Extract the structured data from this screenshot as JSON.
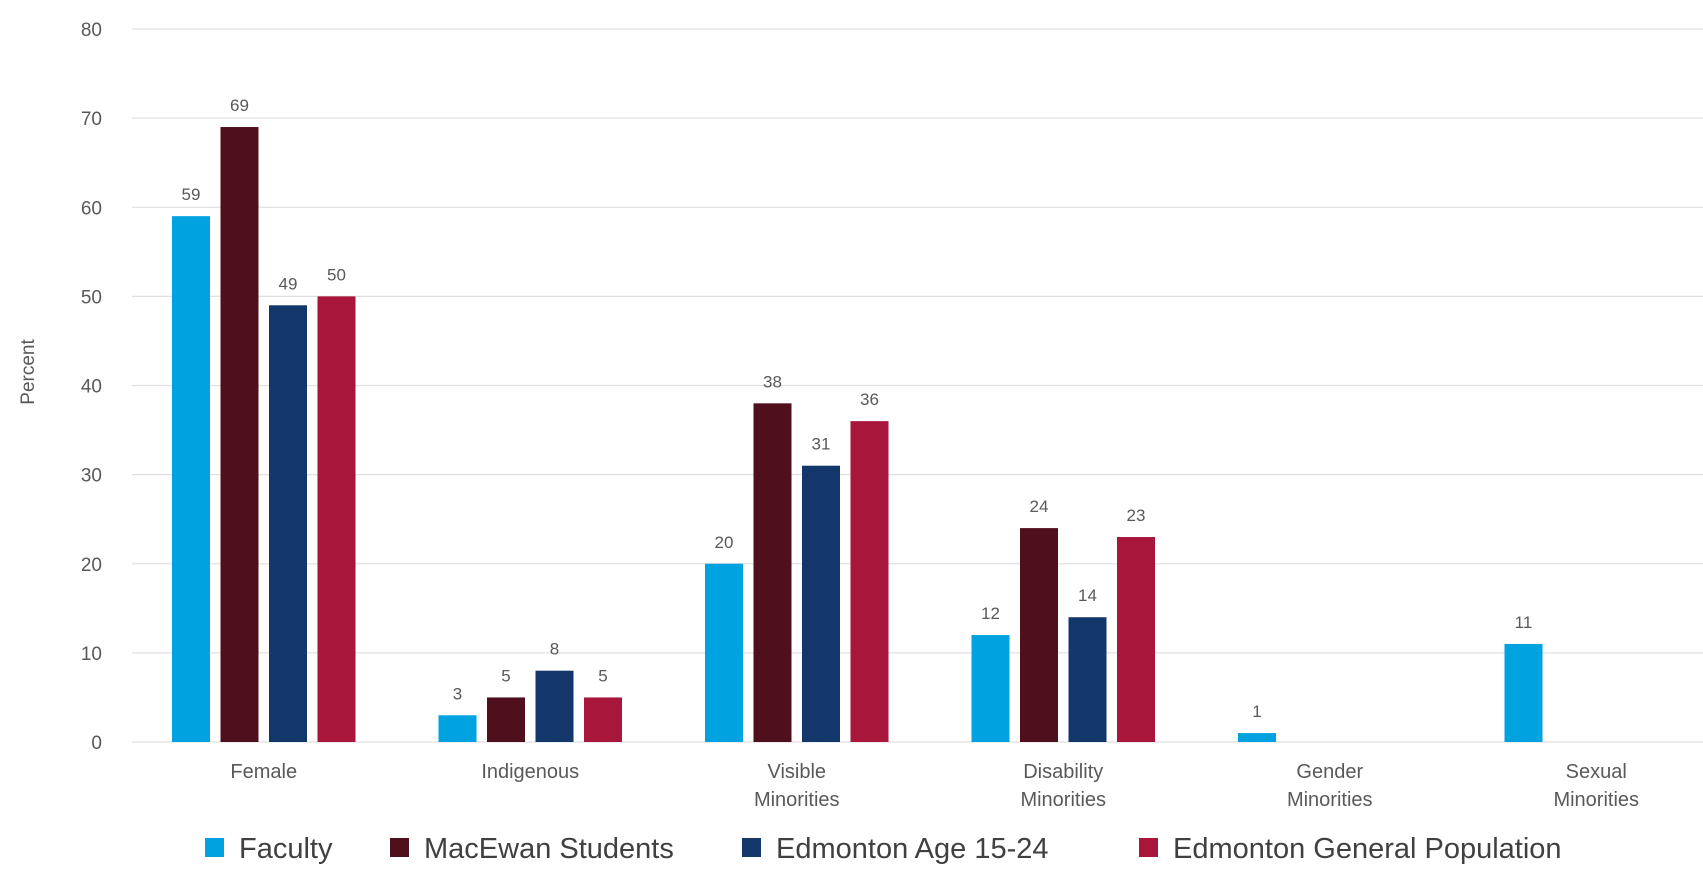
{
  "chart_data": {
    "type": "bar",
    "title": "",
    "xlabel": "",
    "ylabel": "Percent",
    "ylim": [
      0,
      80
    ],
    "yticks": [
      0,
      10,
      20,
      30,
      40,
      50,
      60,
      70,
      80
    ],
    "grid": true,
    "legend_position": "bottom",
    "categories": [
      [
        "Female"
      ],
      [
        "Indigenous"
      ],
      [
        "Visible",
        "Minorities"
      ],
      [
        "Disability",
        "Minorities"
      ],
      [
        "Gender",
        "Minorities"
      ],
      [
        "Sexual",
        "Minorities"
      ]
    ],
    "series": [
      {
        "name": "Faculty",
        "color": "#00a3e0",
        "values": [
          59,
          3,
          20,
          12,
          1,
          11
        ]
      },
      {
        "name": "MacEwan Students",
        "color": "#4f0f1c",
        "values": [
          69,
          5,
          38,
          24,
          null,
          null
        ]
      },
      {
        "name": "Edmonton Age 15-24",
        "color": "#13376a",
        "values": [
          49,
          8,
          31,
          14,
          null,
          null
        ]
      },
      {
        "name": "Edmonton General Population",
        "color": "#a8163b",
        "values": [
          50,
          5,
          36,
          23,
          null,
          null
        ]
      }
    ]
  }
}
